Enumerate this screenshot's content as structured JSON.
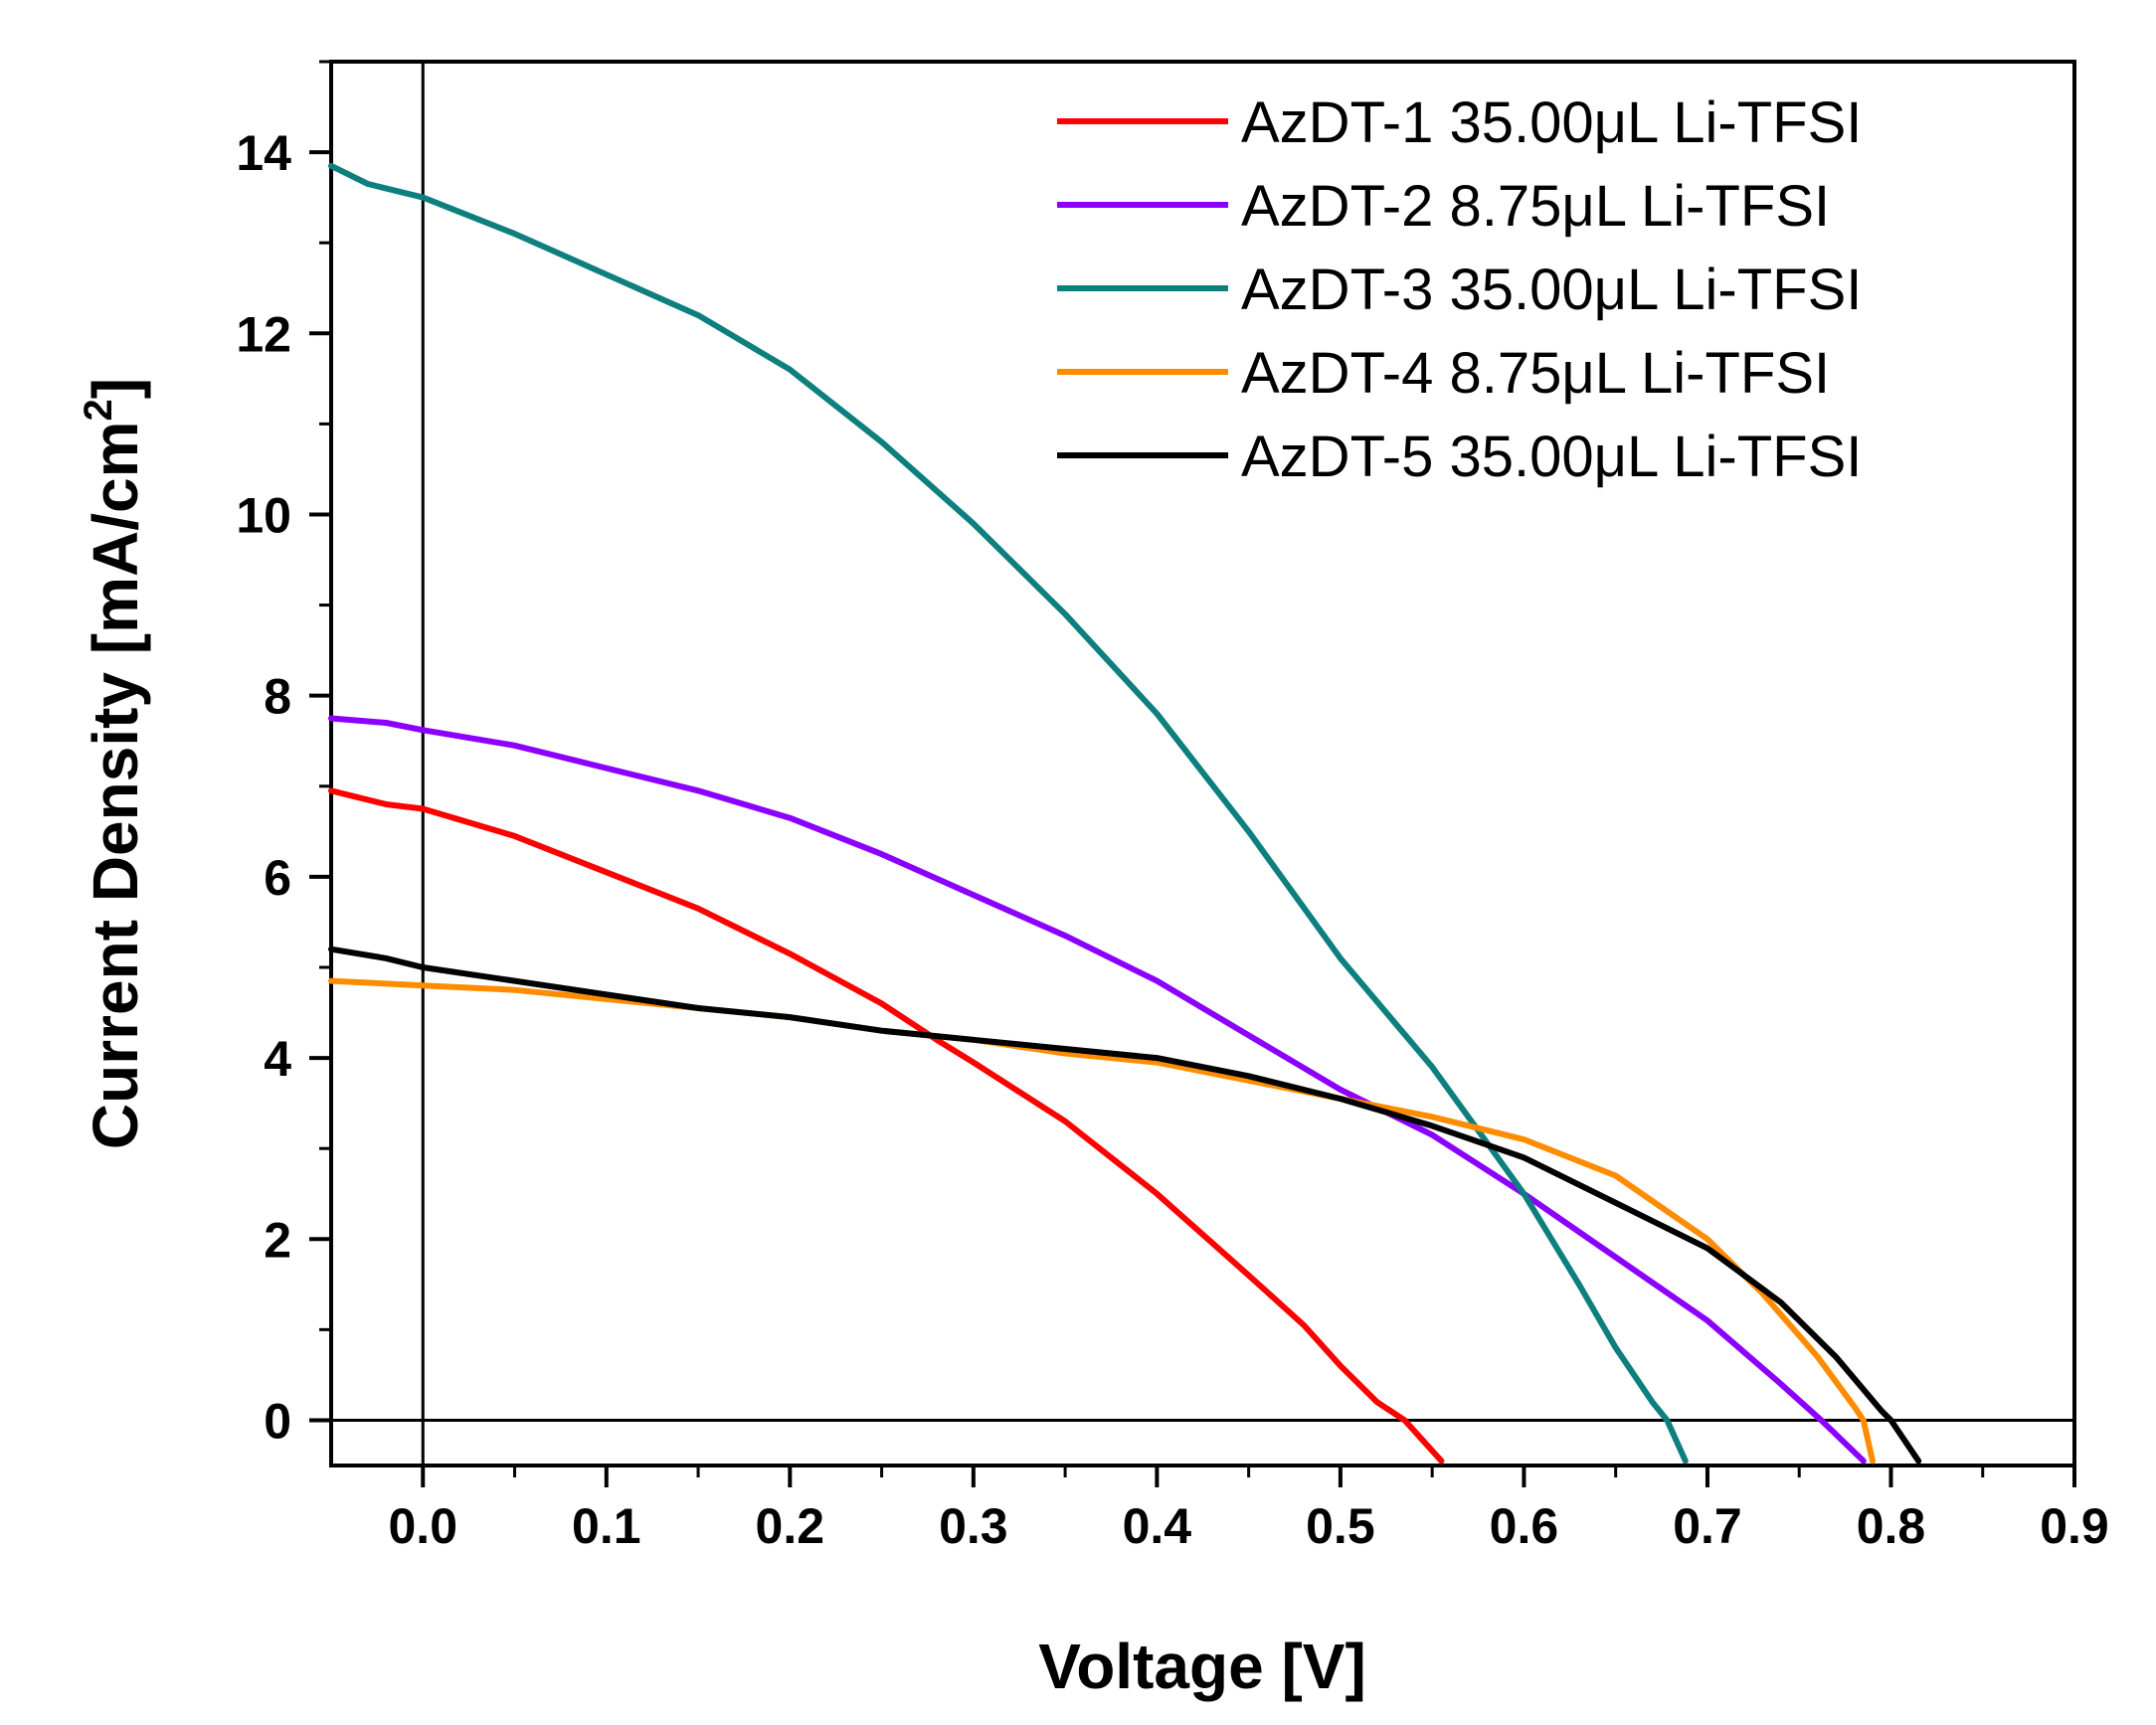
{
  "chart_data": {
    "type": "line",
    "title": "",
    "xlabel": "Voltage [V]",
    "ylabel_main": "Current Density [mA/cm",
    "ylabel_sup": "2",
    "ylabel_end": "]",
    "xlim": [
      -0.05,
      0.9
    ],
    "ylim": [
      -0.5,
      15
    ],
    "xticks": [
      0.0,
      0.1,
      0.2,
      0.3,
      0.4,
      0.5,
      0.6,
      0.7,
      0.8,
      0.9
    ],
    "xtick_labels": [
      "0.0",
      "0.1",
      "0.2",
      "0.3",
      "0.4",
      "0.5",
      "0.6",
      "0.7",
      "0.8",
      "0.9"
    ],
    "yticks": [
      0,
      2,
      4,
      6,
      8,
      10,
      12,
      14
    ],
    "ytick_labels": [
      "0",
      "2",
      "4",
      "6",
      "8",
      "10",
      "12",
      "14"
    ],
    "grid": false,
    "legend_position": "top-right",
    "zero_lines": true,
    "series": [
      {
        "name": "AzDT-1 35.00μL Li-TFSI",
        "color": "#ff0000",
        "points": [
          [
            -0.05,
            6.95
          ],
          [
            -0.02,
            6.8
          ],
          [
            0.0,
            6.75
          ],
          [
            0.05,
            6.45
          ],
          [
            0.1,
            6.05
          ],
          [
            0.15,
            5.65
          ],
          [
            0.2,
            5.15
          ],
          [
            0.25,
            4.6
          ],
          [
            0.28,
            4.2
          ],
          [
            0.3,
            3.95
          ],
          [
            0.35,
            3.3
          ],
          [
            0.4,
            2.5
          ],
          [
            0.45,
            1.6
          ],
          [
            0.48,
            1.05
          ],
          [
            0.5,
            0.6
          ],
          [
            0.52,
            0.2
          ],
          [
            0.535,
            0.0
          ],
          [
            0.555,
            -0.45
          ]
        ]
      },
      {
        "name": "AzDT-2 8.75μL Li-TFSI",
        "color": "#8b00ff",
        "points": [
          [
            -0.05,
            7.75
          ],
          [
            -0.02,
            7.7
          ],
          [
            0.0,
            7.62
          ],
          [
            0.05,
            7.45
          ],
          [
            0.1,
            7.2
          ],
          [
            0.15,
            6.95
          ],
          [
            0.2,
            6.65
          ],
          [
            0.25,
            6.25
          ],
          [
            0.3,
            5.8
          ],
          [
            0.35,
            5.35
          ],
          [
            0.4,
            4.85
          ],
          [
            0.45,
            4.25
          ],
          [
            0.5,
            3.65
          ],
          [
            0.55,
            3.15
          ],
          [
            0.6,
            2.5
          ],
          [
            0.65,
            1.8
          ],
          [
            0.7,
            1.1
          ],
          [
            0.74,
            0.4
          ],
          [
            0.762,
            0.0
          ],
          [
            0.785,
            -0.45
          ]
        ]
      },
      {
        "name": "AzDT-3 35.00μL Li-TFSI",
        "color": "#0e7f7f",
        "points": [
          [
            -0.05,
            13.85
          ],
          [
            -0.03,
            13.65
          ],
          [
            0.0,
            13.5
          ],
          [
            0.05,
            13.1
          ],
          [
            0.1,
            12.65
          ],
          [
            0.15,
            12.2
          ],
          [
            0.2,
            11.6
          ],
          [
            0.25,
            10.8
          ],
          [
            0.3,
            9.9
          ],
          [
            0.35,
            8.9
          ],
          [
            0.4,
            7.8
          ],
          [
            0.45,
            6.5
          ],
          [
            0.5,
            5.1
          ],
          [
            0.55,
            3.9
          ],
          [
            0.6,
            2.5
          ],
          [
            0.63,
            1.5
          ],
          [
            0.65,
            0.8
          ],
          [
            0.67,
            0.2
          ],
          [
            0.678,
            0.0
          ],
          [
            0.688,
            -0.45
          ]
        ]
      },
      {
        "name": "AzDT-4 8.75μL Li-TFSI",
        "color": "#ff8c00",
        "points": [
          [
            -0.05,
            4.85
          ],
          [
            0.0,
            4.8
          ],
          [
            0.05,
            4.75
          ],
          [
            0.1,
            4.65
          ],
          [
            0.15,
            4.55
          ],
          [
            0.2,
            4.45
          ],
          [
            0.25,
            4.3
          ],
          [
            0.3,
            4.2
          ],
          [
            0.35,
            4.05
          ],
          [
            0.4,
            3.95
          ],
          [
            0.45,
            3.75
          ],
          [
            0.5,
            3.55
          ],
          [
            0.55,
            3.35
          ],
          [
            0.6,
            3.1
          ],
          [
            0.65,
            2.7
          ],
          [
            0.7,
            2.0
          ],
          [
            0.73,
            1.4
          ],
          [
            0.76,
            0.7
          ],
          [
            0.78,
            0.15
          ],
          [
            0.785,
            0.0
          ],
          [
            0.79,
            -0.45
          ]
        ]
      },
      {
        "name": "AzDT-5 35.00μL Li-TFSI",
        "color": "#000000",
        "points": [
          [
            -0.05,
            5.2
          ],
          [
            -0.02,
            5.1
          ],
          [
            0.0,
            5.0
          ],
          [
            0.05,
            4.85
          ],
          [
            0.1,
            4.7
          ],
          [
            0.15,
            4.55
          ],
          [
            0.2,
            4.45
          ],
          [
            0.25,
            4.3
          ],
          [
            0.3,
            4.2
          ],
          [
            0.35,
            4.1
          ],
          [
            0.4,
            4.0
          ],
          [
            0.45,
            3.8
          ],
          [
            0.5,
            3.55
          ],
          [
            0.55,
            3.25
          ],
          [
            0.6,
            2.9
          ],
          [
            0.65,
            2.4
          ],
          [
            0.7,
            1.9
          ],
          [
            0.74,
            1.3
          ],
          [
            0.77,
            0.7
          ],
          [
            0.795,
            0.1
          ],
          [
            0.8,
            0.0
          ],
          [
            0.815,
            -0.45
          ]
        ]
      }
    ]
  }
}
